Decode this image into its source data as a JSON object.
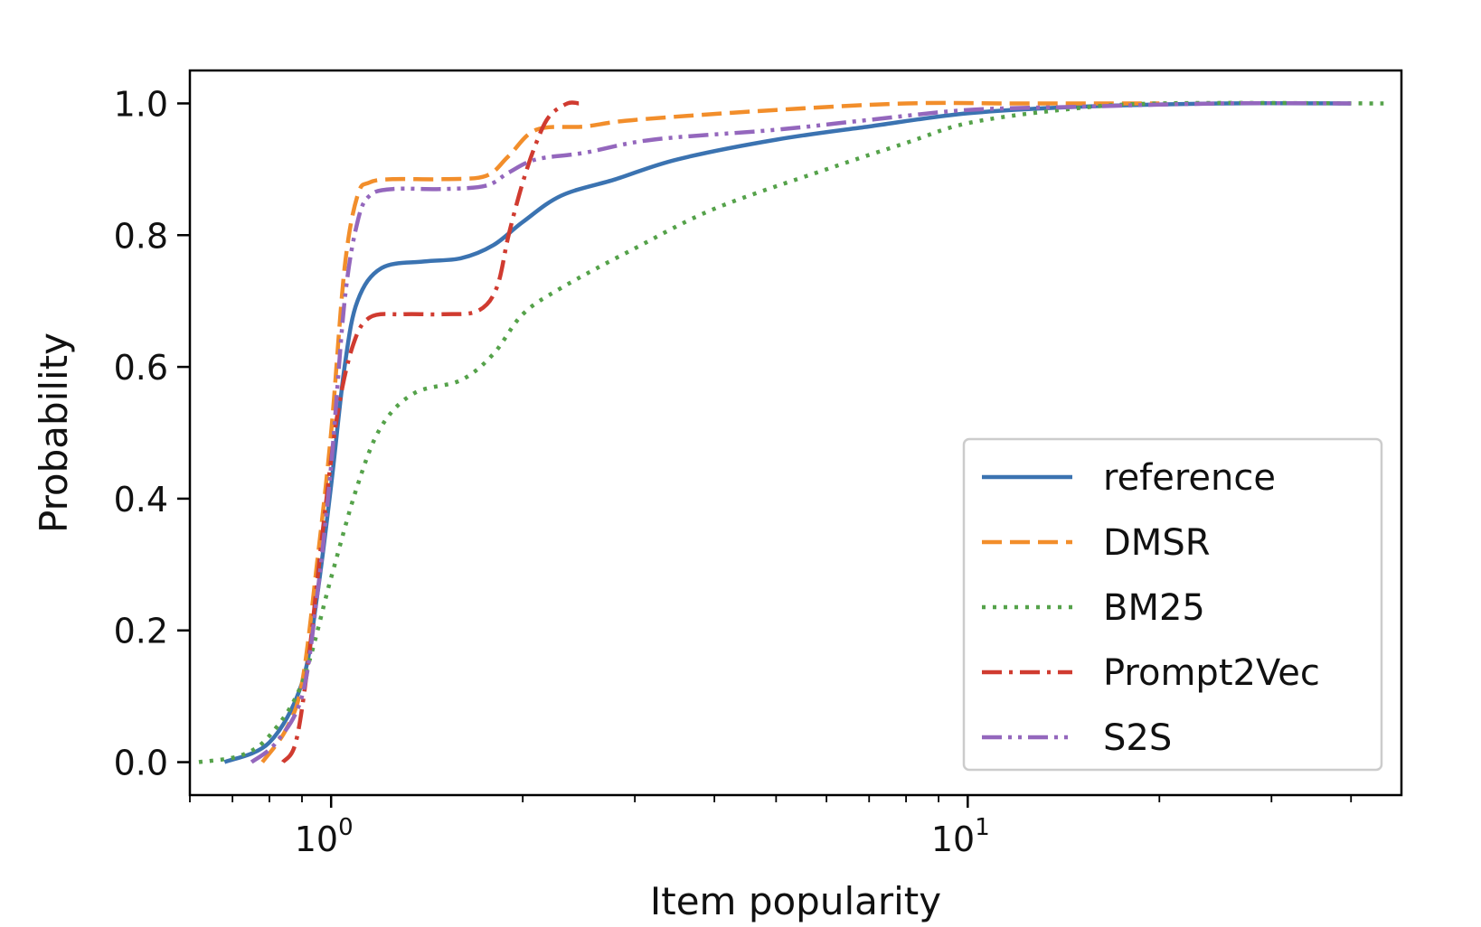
{
  "chart_data": {
    "type": "line",
    "xlabel": "Item popularity",
    "ylabel": "Probability",
    "xscale": "log",
    "xlim": [
      0.6,
      48
    ],
    "ylim": [
      -0.05,
      1.05
    ],
    "grid": false,
    "legend_position": "lower-right",
    "x_ticks": [
      {
        "value": 1,
        "base": "10",
        "exp": "0"
      },
      {
        "value": 10,
        "base": "10",
        "exp": "1"
      }
    ],
    "y_ticks": [
      {
        "value": 0.0,
        "label": "0.0"
      },
      {
        "value": 0.2,
        "label": "0.2"
      },
      {
        "value": 0.4,
        "label": "0.4"
      },
      {
        "value": 0.6,
        "label": "0.6"
      },
      {
        "value": 0.8,
        "label": "0.8"
      },
      {
        "value": 1.0,
        "label": "1.0"
      }
    ],
    "series": [
      {
        "name": "reference",
        "color": "#3b73b1",
        "style": "solid",
        "points": [
          [
            0.68,
            0.0
          ],
          [
            0.8,
            0.03
          ],
          [
            0.9,
            0.12
          ],
          [
            0.95,
            0.25
          ],
          [
            1.0,
            0.42
          ],
          [
            1.05,
            0.6
          ],
          [
            1.1,
            0.7
          ],
          [
            1.2,
            0.75
          ],
          [
            1.4,
            0.76
          ],
          [
            1.6,
            0.765
          ],
          [
            1.8,
            0.785
          ],
          [
            2.0,
            0.82
          ],
          [
            2.3,
            0.86
          ],
          [
            2.8,
            0.885
          ],
          [
            3.5,
            0.915
          ],
          [
            5,
            0.945
          ],
          [
            7,
            0.965
          ],
          [
            10,
            0.985
          ],
          [
            15,
            0.995
          ],
          [
            25,
            1.0
          ],
          [
            40,
            1.0
          ]
        ]
      },
      {
        "name": "DMSR",
        "color": "#f28e2b",
        "style": "dashed",
        "points": [
          [
            0.78,
            0.0
          ],
          [
            0.85,
            0.05
          ],
          [
            0.9,
            0.12
          ],
          [
            0.95,
            0.3
          ],
          [
            1.0,
            0.5
          ],
          [
            1.05,
            0.75
          ],
          [
            1.1,
            0.86
          ],
          [
            1.15,
            0.88
          ],
          [
            1.25,
            0.885
          ],
          [
            1.5,
            0.885
          ],
          [
            1.75,
            0.89
          ],
          [
            1.9,
            0.92
          ],
          [
            2.1,
            0.96
          ],
          [
            2.5,
            0.965
          ],
          [
            3.0,
            0.975
          ],
          [
            5,
            0.99
          ],
          [
            8,
            1.0
          ],
          [
            12,
            1.0
          ],
          [
            20,
            1.0
          ]
        ]
      },
      {
        "name": "BM25",
        "color": "#55a24a",
        "style": "dotted",
        "points": [
          [
            0.62,
            0.0
          ],
          [
            0.72,
            0.01
          ],
          [
            0.8,
            0.04
          ],
          [
            0.9,
            0.12
          ],
          [
            1.0,
            0.28
          ],
          [
            1.1,
            0.42
          ],
          [
            1.2,
            0.51
          ],
          [
            1.35,
            0.56
          ],
          [
            1.6,
            0.58
          ],
          [
            1.8,
            0.62
          ],
          [
            2.0,
            0.68
          ],
          [
            2.3,
            0.72
          ],
          [
            3.0,
            0.78
          ],
          [
            4,
            0.84
          ],
          [
            6,
            0.9
          ],
          [
            8,
            0.94
          ],
          [
            10,
            0.97
          ],
          [
            14,
            0.99
          ],
          [
            20,
            1.0
          ],
          [
            45,
            1.0
          ]
        ]
      },
      {
        "name": "Prompt2Vec",
        "color": "#d03b30",
        "style": "dashdot",
        "points": [
          [
            0.84,
            0.0
          ],
          [
            0.88,
            0.03
          ],
          [
            0.92,
            0.15
          ],
          [
            0.97,
            0.35
          ],
          [
            1.02,
            0.52
          ],
          [
            1.08,
            0.63
          ],
          [
            1.15,
            0.675
          ],
          [
            1.3,
            0.68
          ],
          [
            1.5,
            0.68
          ],
          [
            1.7,
            0.685
          ],
          [
            1.82,
            0.72
          ],
          [
            1.9,
            0.8
          ],
          [
            2.0,
            0.88
          ],
          [
            2.1,
            0.94
          ],
          [
            2.2,
            0.98
          ],
          [
            2.35,
            1.0
          ],
          [
            2.45,
            1.0
          ]
        ]
      },
      {
        "name": "S2S",
        "color": "#9467bd",
        "style": "dashdotdot",
        "points": [
          [
            0.75,
            0.0
          ],
          [
            0.82,
            0.03
          ],
          [
            0.9,
            0.1
          ],
          [
            0.95,
            0.25
          ],
          [
            1.0,
            0.45
          ],
          [
            1.05,
            0.7
          ],
          [
            1.1,
            0.82
          ],
          [
            1.15,
            0.86
          ],
          [
            1.25,
            0.87
          ],
          [
            1.5,
            0.87
          ],
          [
            1.75,
            0.875
          ],
          [
            1.9,
            0.895
          ],
          [
            2.1,
            0.915
          ],
          [
            2.5,
            0.925
          ],
          [
            3.2,
            0.945
          ],
          [
            5,
            0.96
          ],
          [
            7,
            0.975
          ],
          [
            10,
            0.99
          ],
          [
            15,
            0.995
          ],
          [
            25,
            1.0
          ],
          [
            40,
            1.0
          ]
        ]
      }
    ]
  }
}
